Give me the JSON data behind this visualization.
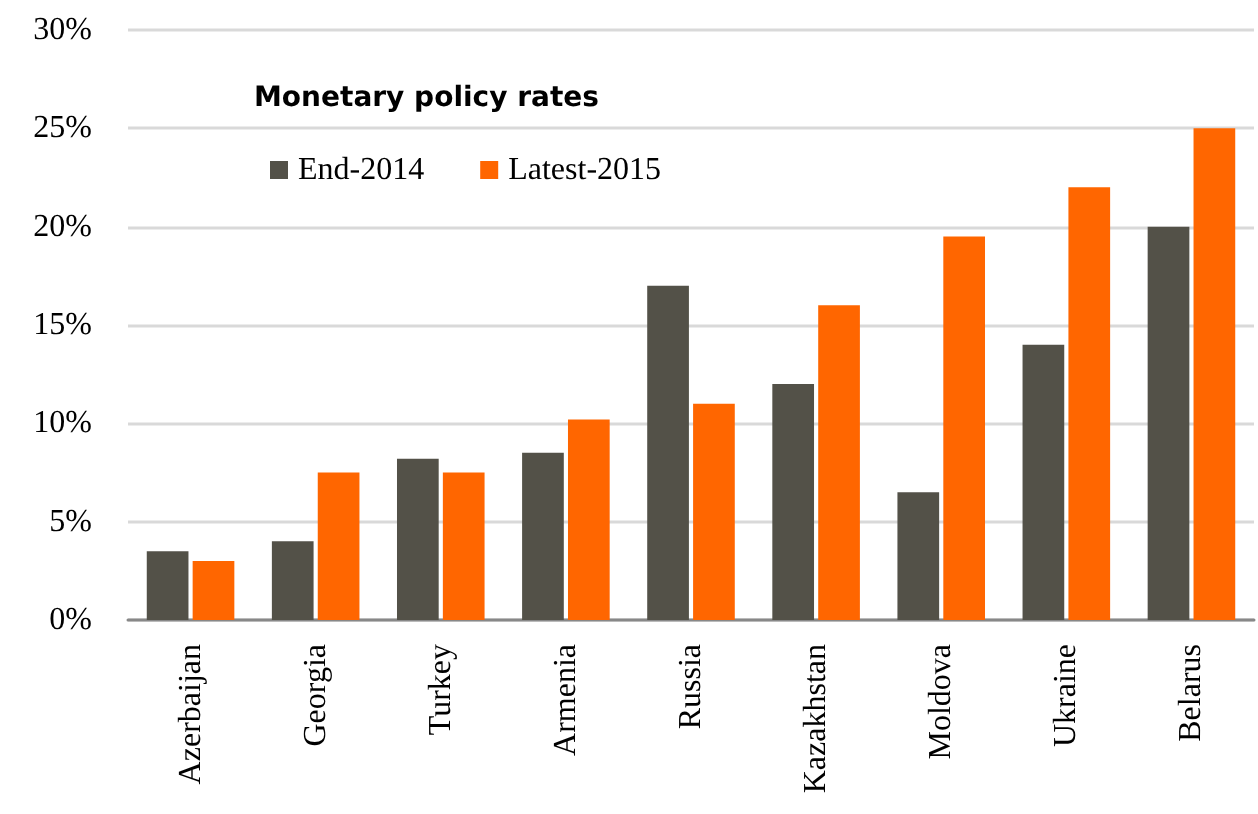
{
  "chart_data": {
    "type": "bar",
    "title": "Monetary policy rates",
    "categories": [
      "Azerbaijan",
      "Georgia",
      "Turkey",
      "Armenia",
      "Russia",
      "Kazakhstan",
      "Moldova",
      "Ukraine",
      "Belarus"
    ],
    "series": [
      {
        "name": "End-2014",
        "color": "#535148",
        "values": [
          3.5,
          4.0,
          8.2,
          8.5,
          17,
          12,
          6.5,
          14,
          20
        ]
      },
      {
        "name": "Latest-2015",
        "color": "#ff6600",
        "values": [
          3.0,
          7.5,
          7.5,
          10.2,
          11,
          16,
          19.5,
          22,
          25
        ]
      }
    ],
    "ylim": [
      0,
      30
    ],
    "yticks": [
      {
        "value": 0,
        "label": "0%"
      },
      {
        "value": 5,
        "label": "5%"
      },
      {
        "value": 10,
        "label": "10%"
      },
      {
        "value": 15,
        "label": "15%"
      },
      {
        "value": 20,
        "label": "20%"
      },
      {
        "value": 25,
        "label": "25%"
      },
      {
        "value": 30,
        "label": "30%"
      }
    ],
    "grid": "y",
    "legend": "top left"
  }
}
